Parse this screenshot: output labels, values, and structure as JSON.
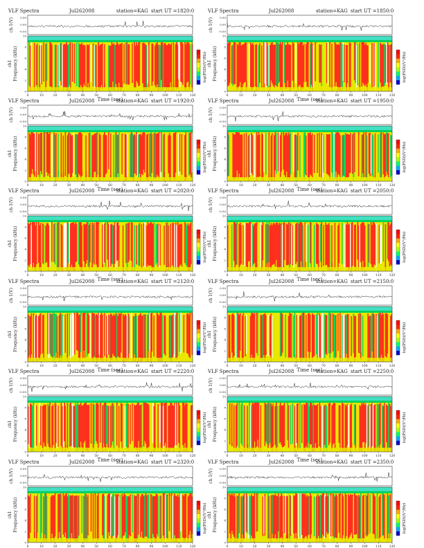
{
  "page": {
    "panels": [
      {
        "header_left": "VLF Spectra",
        "date": "Jul262008",
        "station": "station=KAG",
        "start_ut": "start  UT =1820:0"
      },
      {
        "header_left": "VLF Spectra",
        "date": "Jul262008",
        "station": "station=KAG",
        "start_ut": "start  UT =1850:0"
      },
      {
        "header_left": "VLF Spectra",
        "date": "Jul262008",
        "station": "station=KAG",
        "start_ut": "start  UT =1920:0"
      },
      {
        "header_left": "VLF Spectra",
        "date": "Jul262008",
        "station": "station=KAG",
        "start_ut": "start  UT =1950:0"
      },
      {
        "header_left": "VLF Spectra",
        "date": "Jul262008",
        "station": "station=KAG",
        "start_ut": "start  UT =2020:0"
      },
      {
        "header_left": "VLF Spectra",
        "date": "Jul262008",
        "station": "station=KAG",
        "start_ut": "start  UT =2050:0"
      },
      {
        "header_left": "VLF Spectra",
        "date": "Jul262008",
        "station": "station=KAG",
        "start_ut": "start  UT =2120:0"
      },
      {
        "header_left": "VLF Spectra",
        "date": "Jul262008",
        "station": "station=KAG",
        "start_ut": "start  UT =2150:0"
      },
      {
        "header_left": "VLF Spectra",
        "date": "Jul262008",
        "station": "station=KAG",
        "start_ut": "start  UT =2220:0"
      },
      {
        "header_left": "VLF Spectra",
        "date": "Jul262008",
        "station": "station=KAG",
        "start_ut": "start  UT =2250:0"
      },
      {
        "header_left": "VLF Spectra",
        "date": "Jul262008",
        "station": "station=KAG",
        "start_ut": "start  UT =2320:0"
      },
      {
        "header_left": "VLF Spectra",
        "date": "Jul262008",
        "station": "station=KAG",
        "start_ut": "start  UT =2350:0"
      }
    ]
  },
  "chart_data": {
    "type": "heatmap",
    "layout": "6 rows x 2 columns of spectrogram panels",
    "waveform": {
      "ylabel": "ch 1(V)",
      "yticks": [
        "0.50",
        "0.00",
        "-0.50"
      ]
    },
    "spectrogram": {
      "ylabel": "Frequency  (kHz)",
      "channel_label": "ch1",
      "ylim": [
        0,
        10
      ],
      "yticks": [
        0,
        2,
        4,
        6,
        8,
        10
      ]
    },
    "xaxis": {
      "label": "Time  (sec)",
      "xlim": [
        0,
        120
      ],
      "ticks": [
        0,
        10,
        20,
        30,
        40,
        50,
        60,
        70,
        80,
        90,
        100,
        110,
        120
      ]
    },
    "colorbar": {
      "label": "log(PSD)(V²/Hz)",
      "colors": [
        "#0000cc",
        "#00aaff",
        "#00ff66",
        "#aaff00",
        "#ffff00",
        "#ffaa00",
        "#ff2200",
        "#ff0000"
      ]
    },
    "palette": {
      "low": "#00d060",
      "mid": "#e8e800",
      "high": "#ff2020",
      "band": "#40e0c0"
    }
  }
}
